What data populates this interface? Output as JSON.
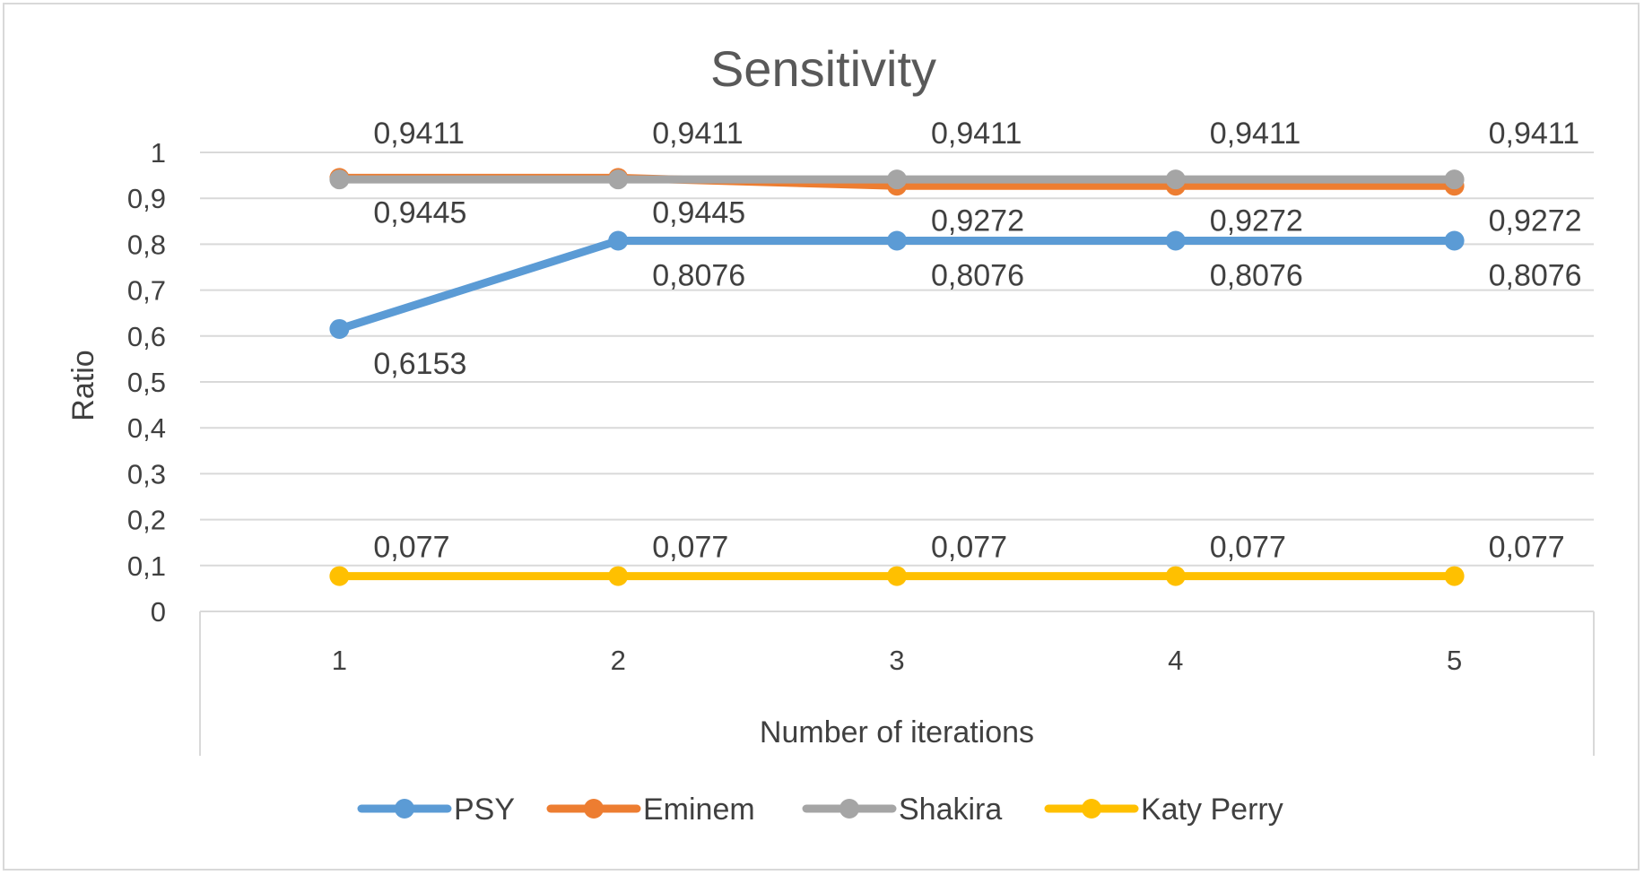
{
  "chart_data": {
    "type": "line",
    "title": "Sensitivity",
    "xlabel": "Number of iterations",
    "ylabel": "Ratio",
    "categories": [
      "1",
      "2",
      "3",
      "4",
      "5"
    ],
    "ylim": [
      0,
      1
    ],
    "yticks": [
      "0",
      "0,1",
      "0,2",
      "0,3",
      "0,4",
      "0,5",
      "0,6",
      "0,7",
      "0,8",
      "0,9",
      "1"
    ],
    "grid": true,
    "legend_position": "bottom",
    "series": [
      {
        "name": "PSY",
        "color": "#5b9bd5",
        "values": [
          0.6153,
          0.8076,
          0.8076,
          0.8076,
          0.8076
        ],
        "labels": [
          "0,6153",
          "0,8076",
          "0,8076",
          "0,8076",
          "0,8076"
        ]
      },
      {
        "name": "Eminem",
        "color": "#ed7d31",
        "values": [
          0.9445,
          0.9445,
          0.9272,
          0.9272,
          0.9272
        ],
        "labels": [
          "0,9445",
          "0,9445",
          "0,9272",
          "0,9272",
          "0,9272"
        ]
      },
      {
        "name": "Shakira",
        "color": "#a5a5a5",
        "values": [
          0.9411,
          0.9411,
          0.9411,
          0.9411,
          0.9411
        ],
        "labels": [
          "0,9411",
          "0,9411",
          "0,9411",
          "0,9411",
          "0,9411"
        ]
      },
      {
        "name": "Katy Perry",
        "color": "#ffc000",
        "values": [
          0.077,
          0.077,
          0.077,
          0.077,
          0.077
        ],
        "labels": [
          "0,077",
          "0,077",
          "0,077",
          "0,077",
          "0,077"
        ]
      }
    ]
  }
}
